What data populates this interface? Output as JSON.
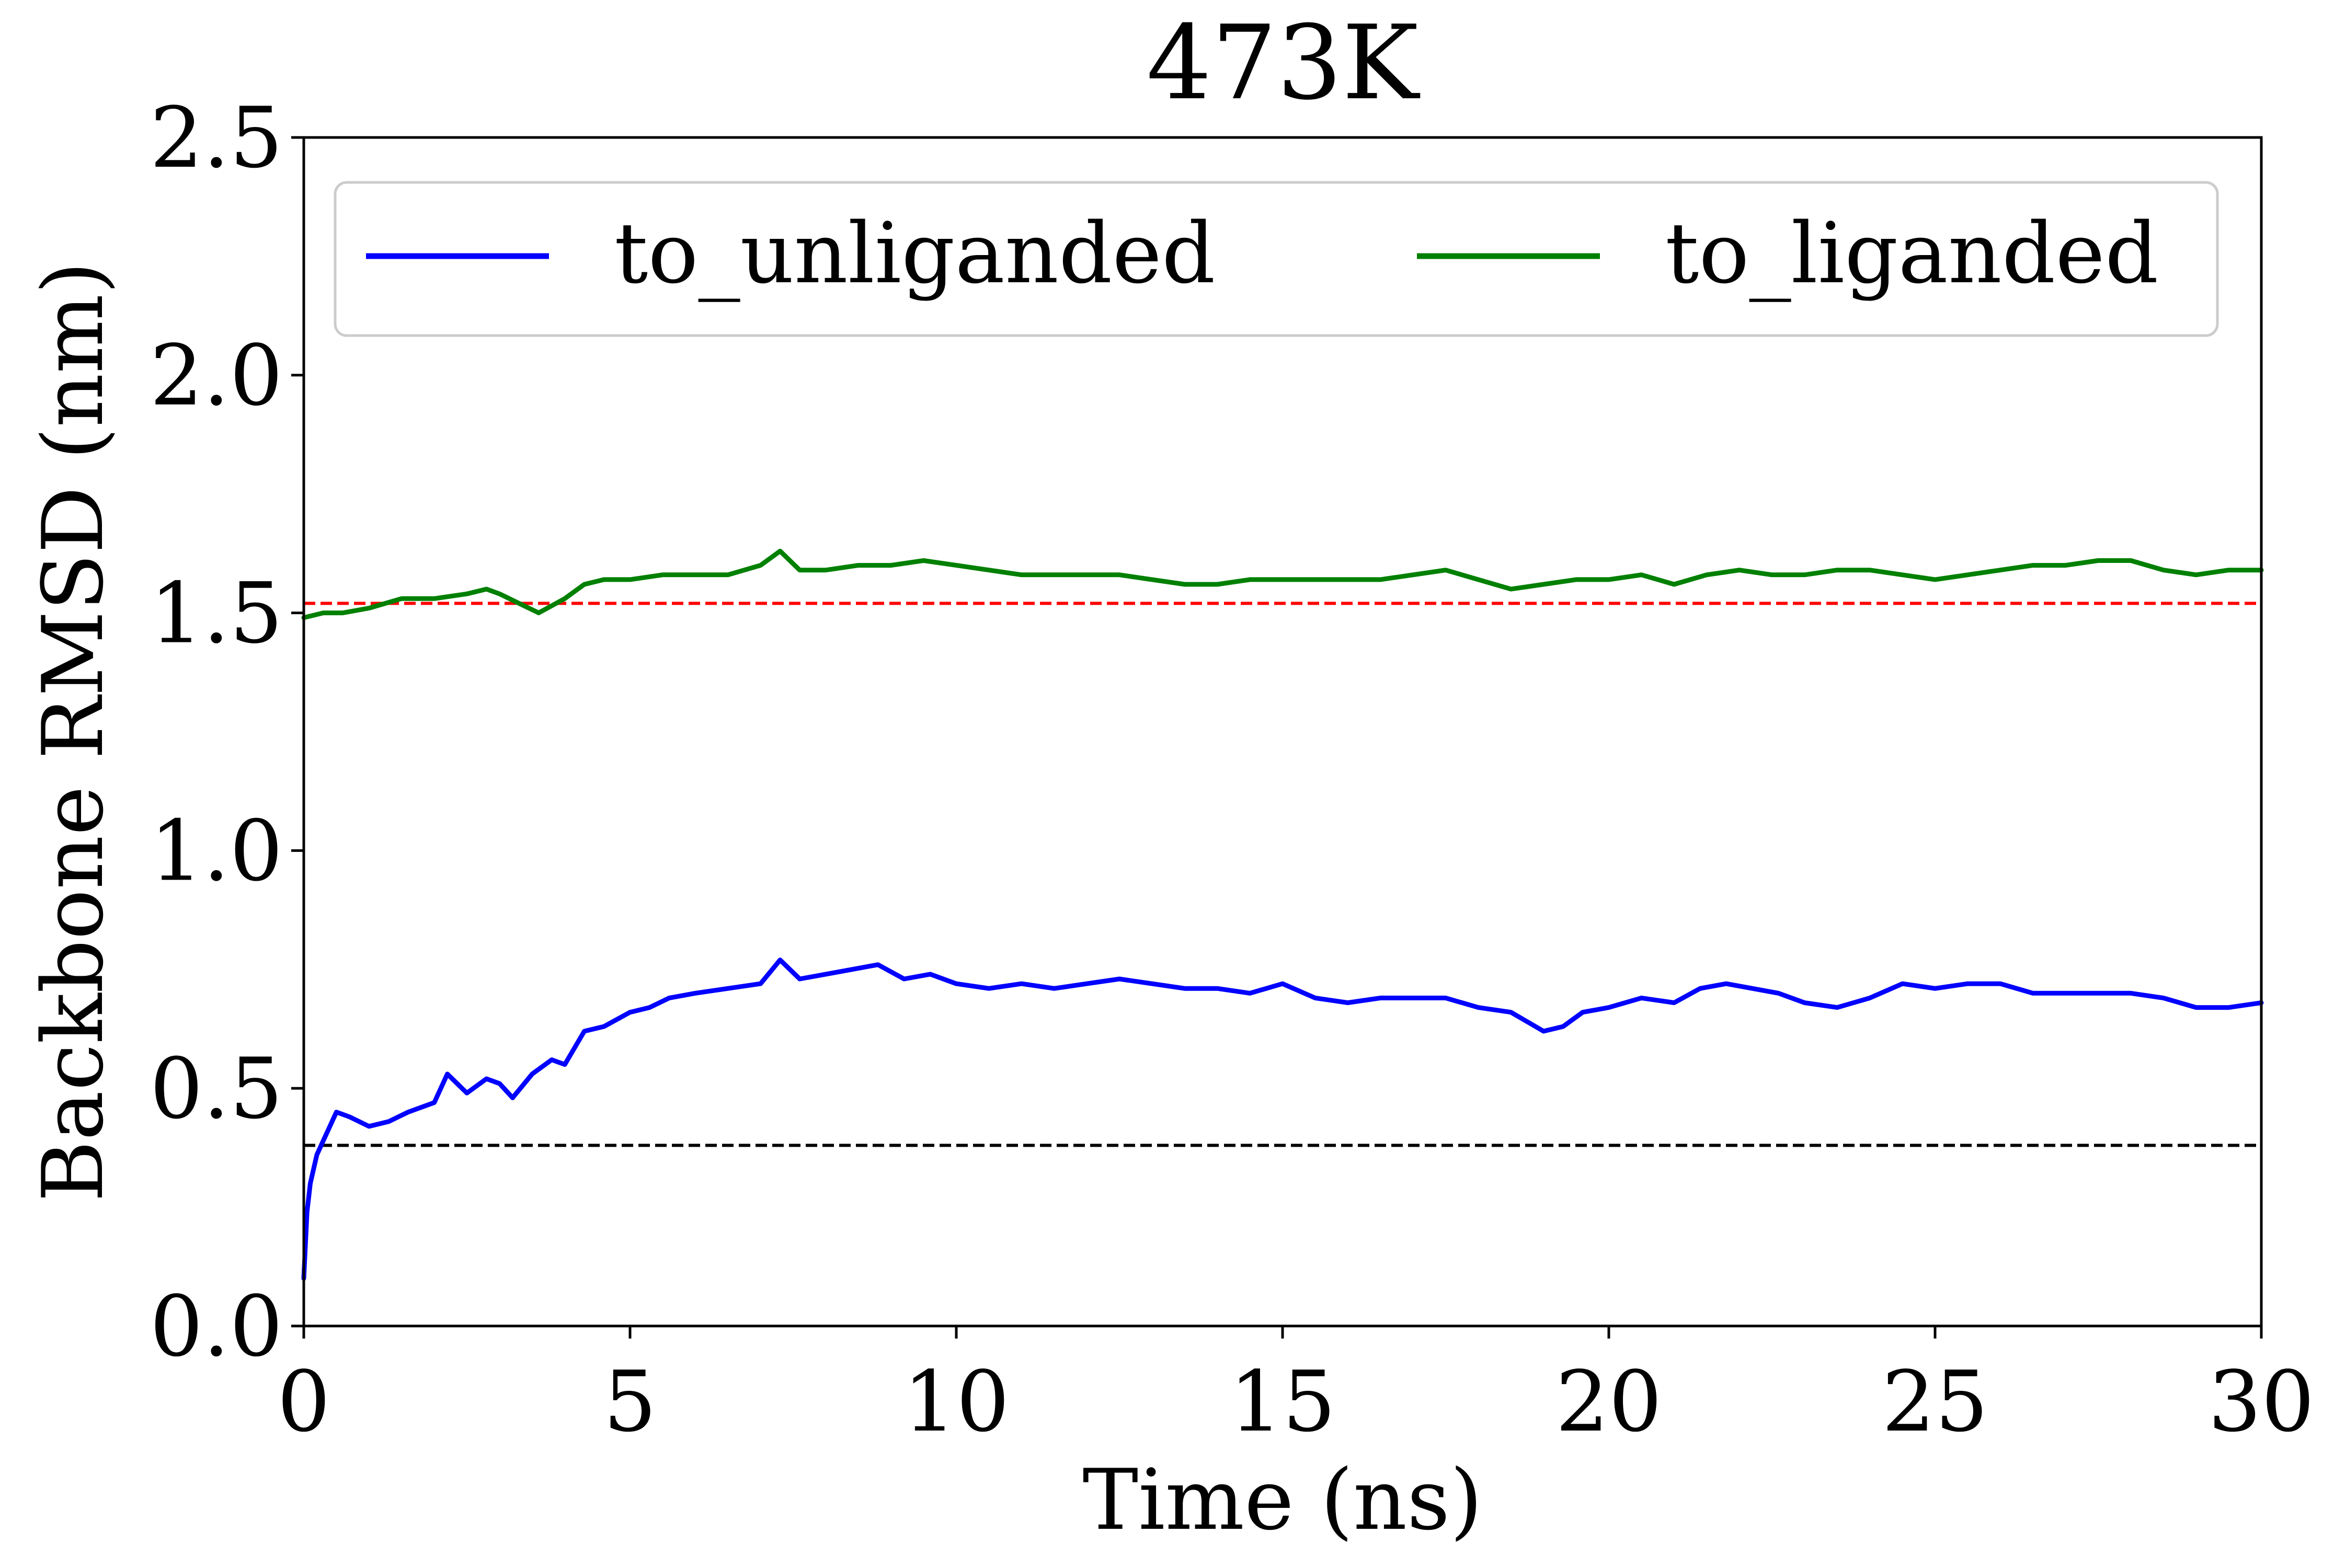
{
  "chart_data": {
    "type": "line",
    "title": "473K",
    "xlabel": "Time (ns)",
    "ylabel": "Backbone RMSD (nm)",
    "xlim": [
      0,
      30
    ],
    "ylim": [
      0,
      2.5
    ],
    "xticks": [
      "0",
      "5",
      "10",
      "15",
      "20",
      "25",
      "30"
    ],
    "yticks": [
      "0.0",
      "0.5",
      "1.0",
      "1.5",
      "2.0",
      "2.5"
    ],
    "grid": false,
    "legend_position": "top",
    "reference_lines": [
      {
        "y": 1.52,
        "color": "#ff0000",
        "style": "dashed"
      },
      {
        "y": 0.38,
        "color": "#000000",
        "style": "dashed"
      }
    ],
    "series": [
      {
        "name": "to_unliganded",
        "color": "#0000ff",
        "points": [
          [
            0.0,
            0.1
          ],
          [
            0.05,
            0.24
          ],
          [
            0.1,
            0.3
          ],
          [
            0.2,
            0.36
          ],
          [
            0.3,
            0.39
          ],
          [
            0.4,
            0.42
          ],
          [
            0.5,
            0.45
          ],
          [
            0.7,
            0.44
          ],
          [
            1.0,
            0.42
          ],
          [
            1.3,
            0.43
          ],
          [
            1.6,
            0.45
          ],
          [
            1.8,
            0.46
          ],
          [
            2.0,
            0.47
          ],
          [
            2.2,
            0.53
          ],
          [
            2.5,
            0.49
          ],
          [
            2.8,
            0.52
          ],
          [
            3.0,
            0.51
          ],
          [
            3.2,
            0.48
          ],
          [
            3.5,
            0.53
          ],
          [
            3.8,
            0.56
          ],
          [
            4.0,
            0.55
          ],
          [
            4.3,
            0.62
          ],
          [
            4.6,
            0.63
          ],
          [
            5.0,
            0.66
          ],
          [
            5.3,
            0.67
          ],
          [
            5.6,
            0.69
          ],
          [
            6.0,
            0.7
          ],
          [
            6.5,
            0.71
          ],
          [
            7.0,
            0.72
          ],
          [
            7.3,
            0.77
          ],
          [
            7.6,
            0.73
          ],
          [
            8.0,
            0.74
          ],
          [
            8.4,
            0.75
          ],
          [
            8.8,
            0.76
          ],
          [
            9.2,
            0.73
          ],
          [
            9.6,
            0.74
          ],
          [
            10.0,
            0.72
          ],
          [
            10.5,
            0.71
          ],
          [
            11.0,
            0.72
          ],
          [
            11.5,
            0.71
          ],
          [
            12.0,
            0.72
          ],
          [
            12.5,
            0.73
          ],
          [
            13.0,
            0.72
          ],
          [
            13.5,
            0.71
          ],
          [
            14.0,
            0.71
          ],
          [
            14.5,
            0.7
          ],
          [
            15.0,
            0.72
          ],
          [
            15.5,
            0.69
          ],
          [
            16.0,
            0.68
          ],
          [
            16.5,
            0.69
          ],
          [
            17.0,
            0.69
          ],
          [
            17.5,
            0.69
          ],
          [
            18.0,
            0.67
          ],
          [
            18.5,
            0.66
          ],
          [
            19.0,
            0.62
          ],
          [
            19.3,
            0.63
          ],
          [
            19.6,
            0.66
          ],
          [
            20.0,
            0.67
          ],
          [
            20.5,
            0.69
          ],
          [
            21.0,
            0.68
          ],
          [
            21.4,
            0.71
          ],
          [
            21.8,
            0.72
          ],
          [
            22.2,
            0.71
          ],
          [
            22.6,
            0.7
          ],
          [
            23.0,
            0.68
          ],
          [
            23.5,
            0.67
          ],
          [
            24.0,
            0.69
          ],
          [
            24.5,
            0.72
          ],
          [
            25.0,
            0.71
          ],
          [
            25.5,
            0.72
          ],
          [
            26.0,
            0.72
          ],
          [
            26.5,
            0.7
          ],
          [
            27.0,
            0.7
          ],
          [
            27.5,
            0.7
          ],
          [
            28.0,
            0.7
          ],
          [
            28.5,
            0.69
          ],
          [
            29.0,
            0.67
          ],
          [
            29.5,
            0.67
          ],
          [
            30.0,
            0.68
          ]
        ]
      },
      {
        "name": "to_liganded",
        "color": "#008000",
        "points": [
          [
            0.0,
            1.49
          ],
          [
            0.3,
            1.5
          ],
          [
            0.6,
            1.5
          ],
          [
            1.0,
            1.51
          ],
          [
            1.5,
            1.53
          ],
          [
            2.0,
            1.53
          ],
          [
            2.5,
            1.54
          ],
          [
            2.8,
            1.55
          ],
          [
            3.0,
            1.54
          ],
          [
            3.3,
            1.52
          ],
          [
            3.6,
            1.5
          ],
          [
            4.0,
            1.53
          ],
          [
            4.3,
            1.56
          ],
          [
            4.6,
            1.57
          ],
          [
            5.0,
            1.57
          ],
          [
            5.5,
            1.58
          ],
          [
            6.0,
            1.58
          ],
          [
            6.5,
            1.58
          ],
          [
            7.0,
            1.6
          ],
          [
            7.3,
            1.63
          ],
          [
            7.6,
            1.59
          ],
          [
            8.0,
            1.59
          ],
          [
            8.5,
            1.6
          ],
          [
            9.0,
            1.6
          ],
          [
            9.5,
            1.61
          ],
          [
            10.0,
            1.6
          ],
          [
            10.5,
            1.59
          ],
          [
            11.0,
            1.58
          ],
          [
            11.5,
            1.58
          ],
          [
            12.0,
            1.58
          ],
          [
            12.5,
            1.58
          ],
          [
            13.0,
            1.57
          ],
          [
            13.5,
            1.56
          ],
          [
            14.0,
            1.56
          ],
          [
            14.5,
            1.57
          ],
          [
            15.0,
            1.57
          ],
          [
            15.5,
            1.57
          ],
          [
            16.0,
            1.57
          ],
          [
            16.5,
            1.57
          ],
          [
            17.0,
            1.58
          ],
          [
            17.5,
            1.59
          ],
          [
            18.0,
            1.57
          ],
          [
            18.5,
            1.55
          ],
          [
            19.0,
            1.56
          ],
          [
            19.5,
            1.57
          ],
          [
            20.0,
            1.57
          ],
          [
            20.5,
            1.58
          ],
          [
            21.0,
            1.56
          ],
          [
            21.5,
            1.58
          ],
          [
            22.0,
            1.59
          ],
          [
            22.5,
            1.58
          ],
          [
            23.0,
            1.58
          ],
          [
            23.5,
            1.59
          ],
          [
            24.0,
            1.59
          ],
          [
            24.5,
            1.58
          ],
          [
            25.0,
            1.57
          ],
          [
            25.5,
            1.58
          ],
          [
            26.0,
            1.59
          ],
          [
            26.5,
            1.6
          ],
          [
            27.0,
            1.6
          ],
          [
            27.5,
            1.61
          ],
          [
            28.0,
            1.61
          ],
          [
            28.5,
            1.59
          ],
          [
            29.0,
            1.58
          ],
          [
            29.5,
            1.59
          ],
          [
            30.0,
            1.59
          ]
        ]
      }
    ]
  }
}
